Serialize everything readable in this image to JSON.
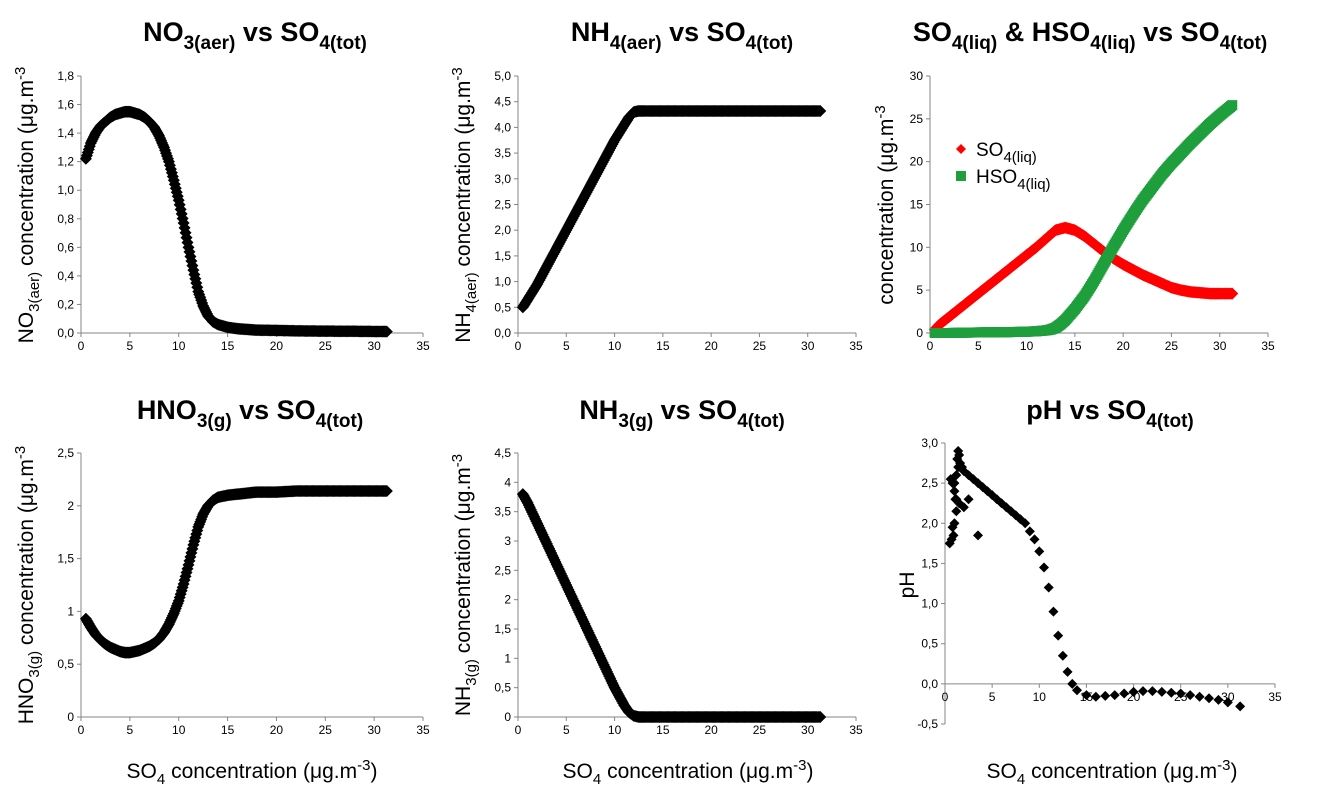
{
  "chart_data": [
    {
      "id": "p1",
      "type": "scatter",
      "title": {
        "main": "NO",
        "sub1": "3(aer)",
        "mid": " vs SO",
        "sub2": "4(tot)"
      },
      "ylabel": {
        "pre": "NO",
        "sub": "3(aer)",
        "post": " concentration (μg.m",
        "sup": "-3",
        "end": ""
      },
      "xlabel": null,
      "xlim": [
        0,
        35
      ],
      "ylim": [
        0,
        1.8
      ],
      "xticks": [
        "0",
        "5",
        "10",
        "15",
        "20",
        "25",
        "30",
        "35"
      ],
      "yticks": [
        "0,0",
        "0,2",
        "0,4",
        "0,6",
        "0,8",
        "1,0",
        "1,2",
        "1,4",
        "1,6",
        "1,8"
      ],
      "series": [
        {
          "color": "#000000",
          "marker": "diamond",
          "x": [
            0.5,
            1,
            1.5,
            2,
            2.5,
            3,
            3.5,
            4,
            4.5,
            5,
            5.5,
            6,
            6.5,
            7,
            7.5,
            8,
            8.5,
            9,
            9.5,
            10,
            10.5,
            11,
            11.5,
            12,
            12.5,
            13,
            13.5,
            14,
            15,
            16,
            17,
            18,
            20,
            22,
            25,
            28,
            31.3
          ],
          "y": [
            1.22,
            1.33,
            1.4,
            1.45,
            1.48,
            1.51,
            1.53,
            1.54,
            1.55,
            1.55,
            1.54,
            1.53,
            1.51,
            1.48,
            1.44,
            1.38,
            1.3,
            1.2,
            1.07,
            0.93,
            0.77,
            0.6,
            0.44,
            0.29,
            0.19,
            0.12,
            0.08,
            0.06,
            0.04,
            0.03,
            0.025,
            0.02,
            0.018,
            0.015,
            0.013,
            0.012,
            0.01
          ]
        }
      ]
    },
    {
      "id": "p2",
      "type": "scatter",
      "title": {
        "main": "NH",
        "sub1": "4(aer)",
        "mid": " vs SO",
        "sub2": "4(tot)"
      },
      "ylabel": {
        "pre": "NH",
        "sub": "4(aer)",
        "post": " concentration (μg.m",
        "sup": "-3",
        "end": ""
      },
      "xlabel": null,
      "xlim": [
        0,
        35
      ],
      "ylim": [
        0,
        5
      ],
      "xticks": [
        "0",
        "5",
        "10",
        "15",
        "20",
        "25",
        "30",
        "35"
      ],
      "yticks": [
        "0,0",
        "0,5",
        "1,0",
        "1,5",
        "2,0",
        "2,5",
        "3,0",
        "3,5",
        "4,0",
        "4,5",
        "5,0"
      ],
      "series": [
        {
          "color": "#000000",
          "marker": "diamond",
          "x": [
            0.5,
            1,
            2,
            3,
            4,
            5,
            6,
            7,
            8,
            9,
            10,
            11,
            11.5,
            12,
            12.5,
            13,
            15,
            18,
            20,
            25,
            30,
            31.3
          ],
          "y": [
            0.5,
            0.65,
            0.95,
            1.3,
            1.65,
            2.0,
            2.35,
            2.7,
            3.05,
            3.4,
            3.75,
            4.05,
            4.2,
            4.3,
            4.32,
            4.32,
            4.32,
            4.32,
            4.32,
            4.32,
            4.32,
            4.32
          ]
        }
      ]
    },
    {
      "id": "p3",
      "type": "scatter",
      "title": {
        "main": "SO",
        "sub1": "4(liq)",
        "mid": " & HSO",
        "sub2": "4(liq)",
        "mid2": " vs SO",
        "sub3": "4(tot)"
      },
      "ylabel": {
        "pre": "concentration (μg.m",
        "sub": "",
        "post": "",
        "sup": "-3",
        "end": ""
      },
      "xlabel": null,
      "xlim": [
        0,
        35
      ],
      "ylim": [
        0,
        30
      ],
      "xticks": [
        "0",
        "5",
        "10",
        "15",
        "20",
        "25",
        "30",
        "35"
      ],
      "yticks": [
        "0",
        "5",
        "10",
        "15",
        "20",
        "25",
        "30"
      ],
      "legend": [
        {
          "label": "SO",
          "sub": "4(liq)",
          "color": "#ff0000",
          "marker": "diamond"
        },
        {
          "label": "HSO",
          "sub": "4(liq)",
          "color": "#1f9e3c",
          "marker": "square"
        }
      ],
      "series": [
        {
          "name": "SO4(liq)",
          "color": "#ff0000",
          "marker": "diamond",
          "x": [
            0.5,
            1,
            2,
            3,
            4,
            5,
            6,
            7,
            8,
            9,
            10,
            11,
            12,
            13,
            14,
            15,
            16,
            17,
            18,
            19,
            20,
            21,
            22,
            23,
            24,
            25,
            26,
            27,
            28,
            29,
            30,
            31.3
          ],
          "y": [
            0.4,
            1.0,
            1.9,
            2.8,
            3.7,
            4.6,
            5.5,
            6.4,
            7.3,
            8.2,
            9.1,
            10.0,
            11.0,
            12.0,
            12.3,
            12.0,
            11.3,
            10.4,
            9.5,
            8.7,
            8.0,
            7.4,
            6.8,
            6.3,
            5.8,
            5.3,
            5.0,
            4.8,
            4.7,
            4.6,
            4.6,
            4.6
          ]
        },
        {
          "name": "HSO4(liq)",
          "color": "#1f9e3c",
          "marker": "square",
          "x": [
            0.5,
            2,
            4,
            6,
            8,
            10,
            11,
            12,
            12.5,
            13,
            13.5,
            14,
            15,
            16,
            17,
            18,
            19,
            20,
            21,
            22,
            23,
            24,
            25,
            26,
            27,
            28,
            29,
            30,
            31.3
          ],
          "y": [
            0,
            0,
            0.05,
            0.08,
            0.1,
            0.15,
            0.2,
            0.3,
            0.4,
            0.6,
            1.0,
            1.5,
            2.8,
            4.3,
            6.1,
            8.1,
            10.1,
            12.0,
            13.8,
            15.5,
            17.0,
            18.5,
            19.8,
            21.0,
            22.2,
            23.3,
            24.4,
            25.4,
            26.6
          ]
        }
      ]
    },
    {
      "id": "p4",
      "type": "scatter",
      "title": {
        "main": "HNO",
        "sub1": "3(g)",
        "mid": " vs SO",
        "sub2": "4(tot)"
      },
      "ylabel": {
        "pre": "HNO",
        "sub": "3(g)",
        "post": " concentration (μg.m",
        "sup": "-3",
        "end": ""
      },
      "xlabel": {
        "pre": "SO",
        "sub": "4",
        "post": " concentration (μg.m",
        "sup": "-3",
        "end": ")"
      },
      "xlim": [
        0,
        35
      ],
      "ylim": [
        0,
        2.5
      ],
      "xticks": [
        "0",
        "5",
        "10",
        "15",
        "20",
        "25",
        "30",
        "35"
      ],
      "yticks": [
        "0",
        "0,5",
        "1",
        "1,5",
        "2",
        "2,5"
      ],
      "series": [
        {
          "color": "#000000",
          "marker": "diamond",
          "x": [
            0.5,
            1,
            1.5,
            2,
            2.5,
            3,
            3.5,
            4,
            4.5,
            5,
            5.5,
            6,
            6.5,
            7,
            7.5,
            8,
            8.5,
            9,
            9.5,
            10,
            10.5,
            11,
            11.5,
            12,
            12.5,
            13,
            13.5,
            14,
            15,
            16,
            17,
            18,
            20,
            22,
            25,
            28,
            31.3
          ],
          "y": [
            0.93,
            0.85,
            0.78,
            0.73,
            0.69,
            0.66,
            0.64,
            0.62,
            0.61,
            0.61,
            0.62,
            0.63,
            0.65,
            0.67,
            0.7,
            0.74,
            0.8,
            0.88,
            0.98,
            1.1,
            1.26,
            1.44,
            1.63,
            1.8,
            1.92,
            2.0,
            2.05,
            2.08,
            2.1,
            2.11,
            2.12,
            2.13,
            2.13,
            2.14,
            2.14,
            2.14,
            2.14
          ]
        }
      ]
    },
    {
      "id": "p5",
      "type": "scatter",
      "title": {
        "main": "NH",
        "sub1": "3(g)",
        "mid": " vs SO",
        "sub2": "4(tot)"
      },
      "ylabel": {
        "pre": "NH",
        "sub": "3(g)",
        "post": " concentration (μg.m",
        "sup": "-3",
        "end": ""
      },
      "xlabel": {
        "pre": "SO",
        "sub": "4",
        "post": " concentration (μg.m",
        "sup": "-3",
        "end": ")"
      },
      "xlim": [
        0,
        35
      ],
      "ylim": [
        0,
        4.5
      ],
      "xticks": [
        "0",
        "5",
        "10",
        "15",
        "20",
        "25",
        "30",
        "35"
      ],
      "yticks": [
        "0",
        "0,5",
        "1",
        "1,5",
        "2",
        "2,5",
        "3",
        "3,5",
        "4",
        "4,5"
      ],
      "series": [
        {
          "color": "#000000",
          "marker": "diamond",
          "x": [
            0.5,
            1,
            2,
            3,
            4,
            5,
            6,
            7,
            8,
            9,
            10,
            11,
            11.5,
            12,
            12.5,
            13,
            15,
            18,
            20,
            25,
            30,
            31.3
          ],
          "y": [
            3.8,
            3.65,
            3.3,
            2.95,
            2.6,
            2.25,
            1.9,
            1.55,
            1.2,
            0.85,
            0.5,
            0.2,
            0.08,
            0.02,
            0.0,
            0.0,
            0.0,
            0.0,
            0.0,
            0.0,
            0.0,
            0.0
          ]
        }
      ]
    },
    {
      "id": "p6",
      "type": "scatter",
      "title": {
        "main": "pH vs SO",
        "sub1": "4(tot)",
        "mid": "",
        "sub2": ""
      },
      "ylabel": {
        "pre": "pH",
        "sub": "",
        "post": "",
        "sup": "",
        "end": ""
      },
      "xlabel": {
        "pre": "SO",
        "sub": "4",
        "post": " concentration (μg.m",
        "sup": "-3",
        "end": ")"
      },
      "xlim": [
        0,
        35
      ],
      "ylim": [
        -0.5,
        3.0
      ],
      "xticks": [
        "0",
        "5",
        "10",
        "15",
        "20",
        "25",
        "30",
        "35"
      ],
      "yticks": [
        "-0,5",
        "0,0",
        "0,5",
        "1,0",
        "1,5",
        "2,0",
        "2,5",
        "3,0"
      ],
      "series": [
        {
          "color": "#000000",
          "marker": "diamond",
          "x": [
            0.5,
            0.7,
            0.9,
            1.0,
            1.1,
            1.2,
            1.3,
            1.4,
            1.5,
            0.6,
            0.8,
            1.0,
            1.2,
            1.4,
            1.6,
            1.8,
            2,
            2.5,
            3,
            3.5,
            4,
            4.5,
            5,
            5.5,
            6,
            6.5,
            7,
            7.5,
            8,
            8.5,
            9,
            9.5,
            10,
            10.5,
            11,
            11.5,
            12,
            12.5,
            13,
            13.5,
            14,
            15,
            16,
            17,
            18,
            19,
            20,
            21,
            22,
            23,
            24,
            25,
            26,
            27,
            28,
            29,
            30,
            31.3,
            0.8,
            1.2,
            2.5,
            3.5,
            2.0,
            1.5,
            1.0
          ],
          "y": [
            1.75,
            1.8,
            1.85,
            2.0,
            2.3,
            2.6,
            2.8,
            2.9,
            2.85,
            2.55,
            2.5,
            2.4,
            2.3,
            2.7,
            2.75,
            2.7,
            2.65,
            2.6,
            2.55,
            2.5,
            2.45,
            2.4,
            2.35,
            2.3,
            2.25,
            2.2,
            2.15,
            2.1,
            2.05,
            2.0,
            1.9,
            1.8,
            1.65,
            1.45,
            1.2,
            0.9,
            0.6,
            0.35,
            0.15,
            0.0,
            -0.08,
            -0.14,
            -0.16,
            -0.15,
            -0.14,
            -0.12,
            -0.1,
            -0.09,
            -0.09,
            -0.1,
            -0.11,
            -0.12,
            -0.14,
            -0.16,
            -0.18,
            -0.2,
            -0.23,
            -0.28,
            1.95,
            2.15,
            2.3,
            1.85,
            2.2,
            2.25,
            2.5
          ]
        }
      ]
    }
  ]
}
